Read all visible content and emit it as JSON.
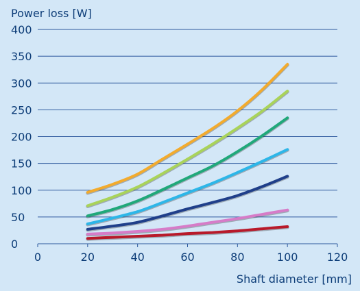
{
  "chart_data": {
    "type": "line",
    "title": "",
    "xlabel": "Shaft diameter [mm]",
    "ylabel": "Power loss [W]",
    "xlim": [
      0,
      120
    ],
    "ylim": [
      0,
      400
    ],
    "x_ticks": [
      0,
      20,
      40,
      60,
      80,
      100,
      120
    ],
    "y_ticks": [
      0,
      50,
      100,
      150,
      200,
      250,
      300,
      350,
      400
    ],
    "grid": "horizontal",
    "legend": "none",
    "series": [
      {
        "color": "#f2ab2e",
        "points": [
          [
            20,
            96
          ],
          [
            30,
            111
          ],
          [
            40,
            130
          ],
          [
            50,
            158
          ],
          [
            60,
            186
          ],
          [
            70,
            215
          ],
          [
            80,
            248
          ],
          [
            90,
            288
          ],
          [
            100,
            335
          ]
        ]
      },
      {
        "color": "#a9d35a",
        "points": [
          [
            20,
            71
          ],
          [
            30,
            87
          ],
          [
            40,
            106
          ],
          [
            50,
            131
          ],
          [
            60,
            158
          ],
          [
            70,
            186
          ],
          [
            80,
            216
          ],
          [
            90,
            248
          ],
          [
            100,
            285
          ]
        ]
      },
      {
        "color": "#20a87a",
        "points": [
          [
            20,
            52
          ],
          [
            30,
            64
          ],
          [
            40,
            80
          ],
          [
            50,
            101
          ],
          [
            60,
            123
          ],
          [
            70,
            145
          ],
          [
            80,
            172
          ],
          [
            90,
            202
          ],
          [
            100,
            235
          ]
        ]
      },
      {
        "color": "#2db6e8",
        "points": [
          [
            20,
            37
          ],
          [
            30,
            48
          ],
          [
            40,
            60
          ],
          [
            50,
            77
          ],
          [
            60,
            95
          ],
          [
            70,
            113
          ],
          [
            80,
            133
          ],
          [
            90,
            154
          ],
          [
            100,
            176
          ]
        ]
      },
      {
        "color": "#1f3f8a",
        "points": [
          [
            20,
            27
          ],
          [
            30,
            33
          ],
          [
            40,
            40
          ],
          [
            50,
            52
          ],
          [
            60,
            65
          ],
          [
            70,
            77
          ],
          [
            80,
            90
          ],
          [
            90,
            107
          ],
          [
            100,
            126
          ]
        ]
      },
      {
        "color": "#d67cc8",
        "points": [
          [
            20,
            18
          ],
          [
            30,
            20
          ],
          [
            40,
            23
          ],
          [
            50,
            27
          ],
          [
            60,
            33
          ],
          [
            70,
            40
          ],
          [
            80,
            47
          ],
          [
            90,
            55
          ],
          [
            100,
            63
          ]
        ]
      },
      {
        "color": "#b8192a",
        "points": [
          [
            20,
            10
          ],
          [
            30,
            12
          ],
          [
            40,
            14
          ],
          [
            50,
            16
          ],
          [
            60,
            19
          ],
          [
            70,
            21
          ],
          [
            80,
            24
          ],
          [
            90,
            28
          ],
          [
            100,
            32
          ]
        ]
      }
    ]
  },
  "colors": {
    "background": "#d3e7f7",
    "grid": "#2e5a9e",
    "text": "#0d3d78"
  }
}
